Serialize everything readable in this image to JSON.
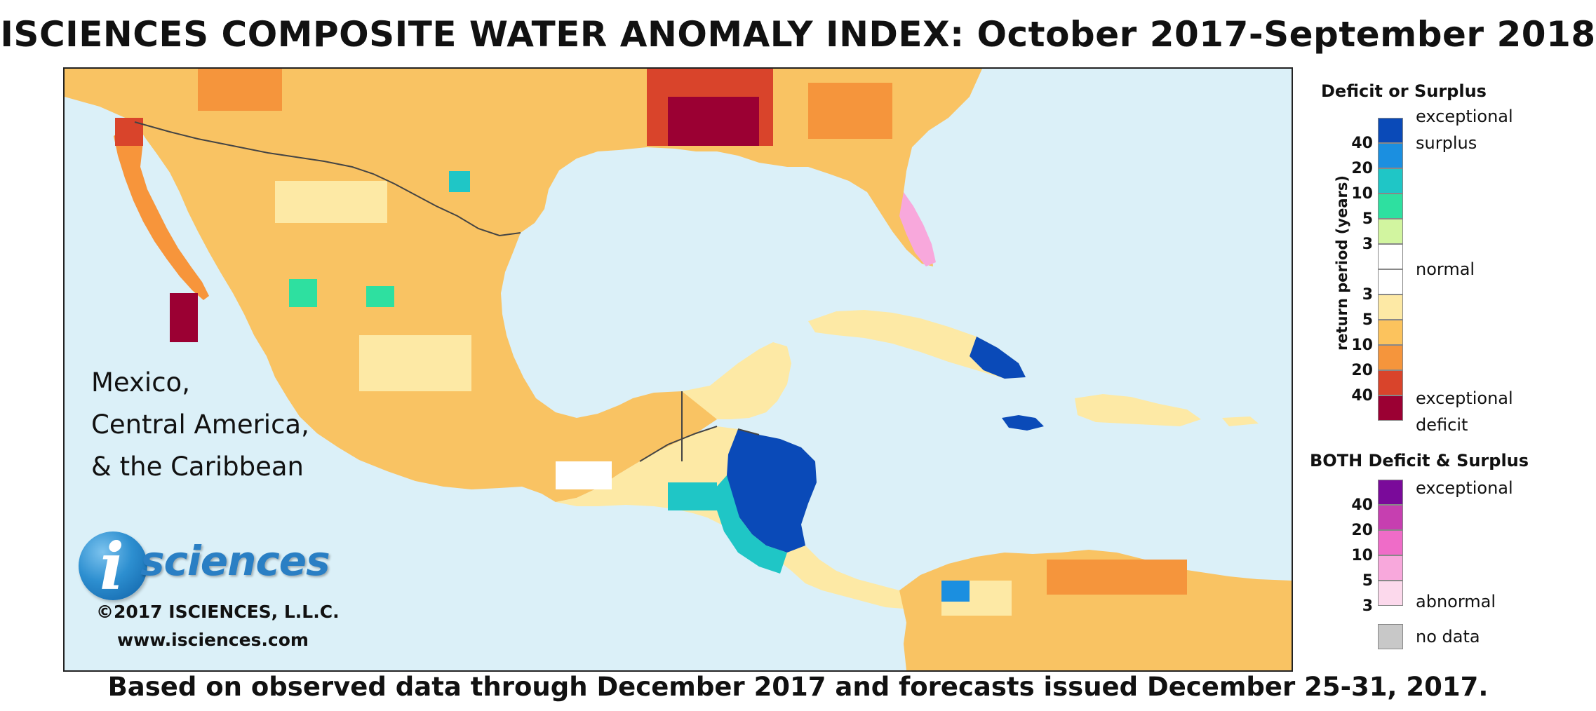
{
  "title": "ISCIENCES COMPOSITE WATER ANOMALY INDEX: October 2017-September 2018",
  "footer": "Based on observed data through December 2017 and forecasts issued December 25-31, 2017.",
  "region_label": [
    "Mexico,",
    "Central America,",
    "& the Caribbean"
  ],
  "logo": {
    "letter": "i",
    "word": "sciences"
  },
  "copyright": "©2017 ISCIENCES, L.L.C.",
  "website": "www.isciences.com",
  "colors": {
    "ocean": "#dbf0f8",
    "land_border": "#444444",
    "deficit": [
      "#fde9a5",
      "#fcc35d",
      "#f5953c",
      "#d9442b",
      "#9b0033"
    ],
    "surplus": [
      "#d2f5a0",
      "#2ee0a0",
      "#1fc6c6",
      "#1b8fe0",
      "#0a4ab8"
    ],
    "both": [
      "#fcd9ec",
      "#f8a8dc",
      "#ef6cc8",
      "#c63fb0",
      "#7a0a9a"
    ],
    "normal": "#ffffff",
    "no_data": "#c8c8c8"
  },
  "legend": {
    "deficit_surplus_title": "Deficit or Surplus",
    "axis_label": "return period (years)",
    "surplus_numbers": [
      "40",
      "20",
      "10",
      "5",
      "3"
    ],
    "deficit_numbers": [
      "3",
      "5",
      "10",
      "20",
      "40"
    ],
    "exceptional_surplus": [
      "exceptional",
      "surplus"
    ],
    "normal": "normal",
    "exceptional_deficit": [
      "exceptional",
      "deficit"
    ],
    "both_title": "BOTH Deficit & Surplus",
    "both_numbers": [
      "40",
      "20",
      "10",
      "5",
      "3"
    ],
    "both_exceptional": "exceptional",
    "both_abnormal": "abnormal",
    "no_data": "no data"
  }
}
